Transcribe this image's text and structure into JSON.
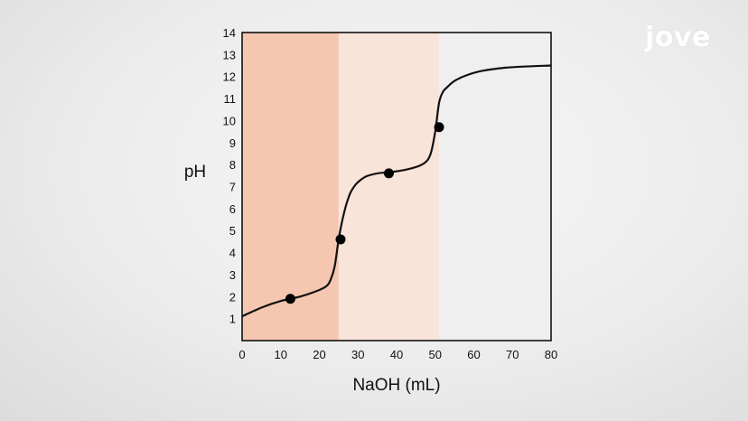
{
  "branding": {
    "logo_text": "jove"
  },
  "chart_data": {
    "type": "line",
    "title": "",
    "xlabel": "NaOH (mL)",
    "ylabel": "pH",
    "xlim": [
      0,
      80
    ],
    "ylim": [
      0,
      14
    ],
    "xticks": [
      0,
      10,
      20,
      30,
      40,
      50,
      60,
      70,
      80
    ],
    "yticks": [
      1,
      2,
      3,
      4,
      5,
      6,
      7,
      8,
      9,
      10,
      11,
      12,
      13,
      14
    ],
    "grid": false,
    "regions": [
      {
        "x": [
          0,
          25
        ],
        "color": "#f5c7b1"
      },
      {
        "x": [
          25,
          51
        ],
        "color": "#f9e4d9"
      },
      {
        "x": [
          51,
          80
        ],
        "color": "#efefef"
      }
    ],
    "series": [
      {
        "x": [
          0,
          5,
          10,
          15,
          20,
          22,
          23,
          24,
          25,
          26,
          27,
          28,
          29,
          30,
          32,
          35,
          38,
          42,
          46,
          48,
          49,
          50,
          51,
          52,
          53,
          55,
          58,
          62,
          68,
          75,
          80
        ],
        "values": [
          1.1,
          1.5,
          1.8,
          2.0,
          2.3,
          2.5,
          2.8,
          3.4,
          4.6,
          5.5,
          6.2,
          6.7,
          7.0,
          7.2,
          7.45,
          7.6,
          7.65,
          7.75,
          7.95,
          8.2,
          8.6,
          9.5,
          10.8,
          11.3,
          11.5,
          11.8,
          12.05,
          12.25,
          12.4,
          12.47,
          12.5
        ],
        "color": "#111111"
      }
    ],
    "points": [
      {
        "x": 12.5,
        "y": 1.9
      },
      {
        "x": 25.5,
        "y": 4.6
      },
      {
        "x": 38,
        "y": 7.6
      },
      {
        "x": 51,
        "y": 9.7
      }
    ]
  }
}
